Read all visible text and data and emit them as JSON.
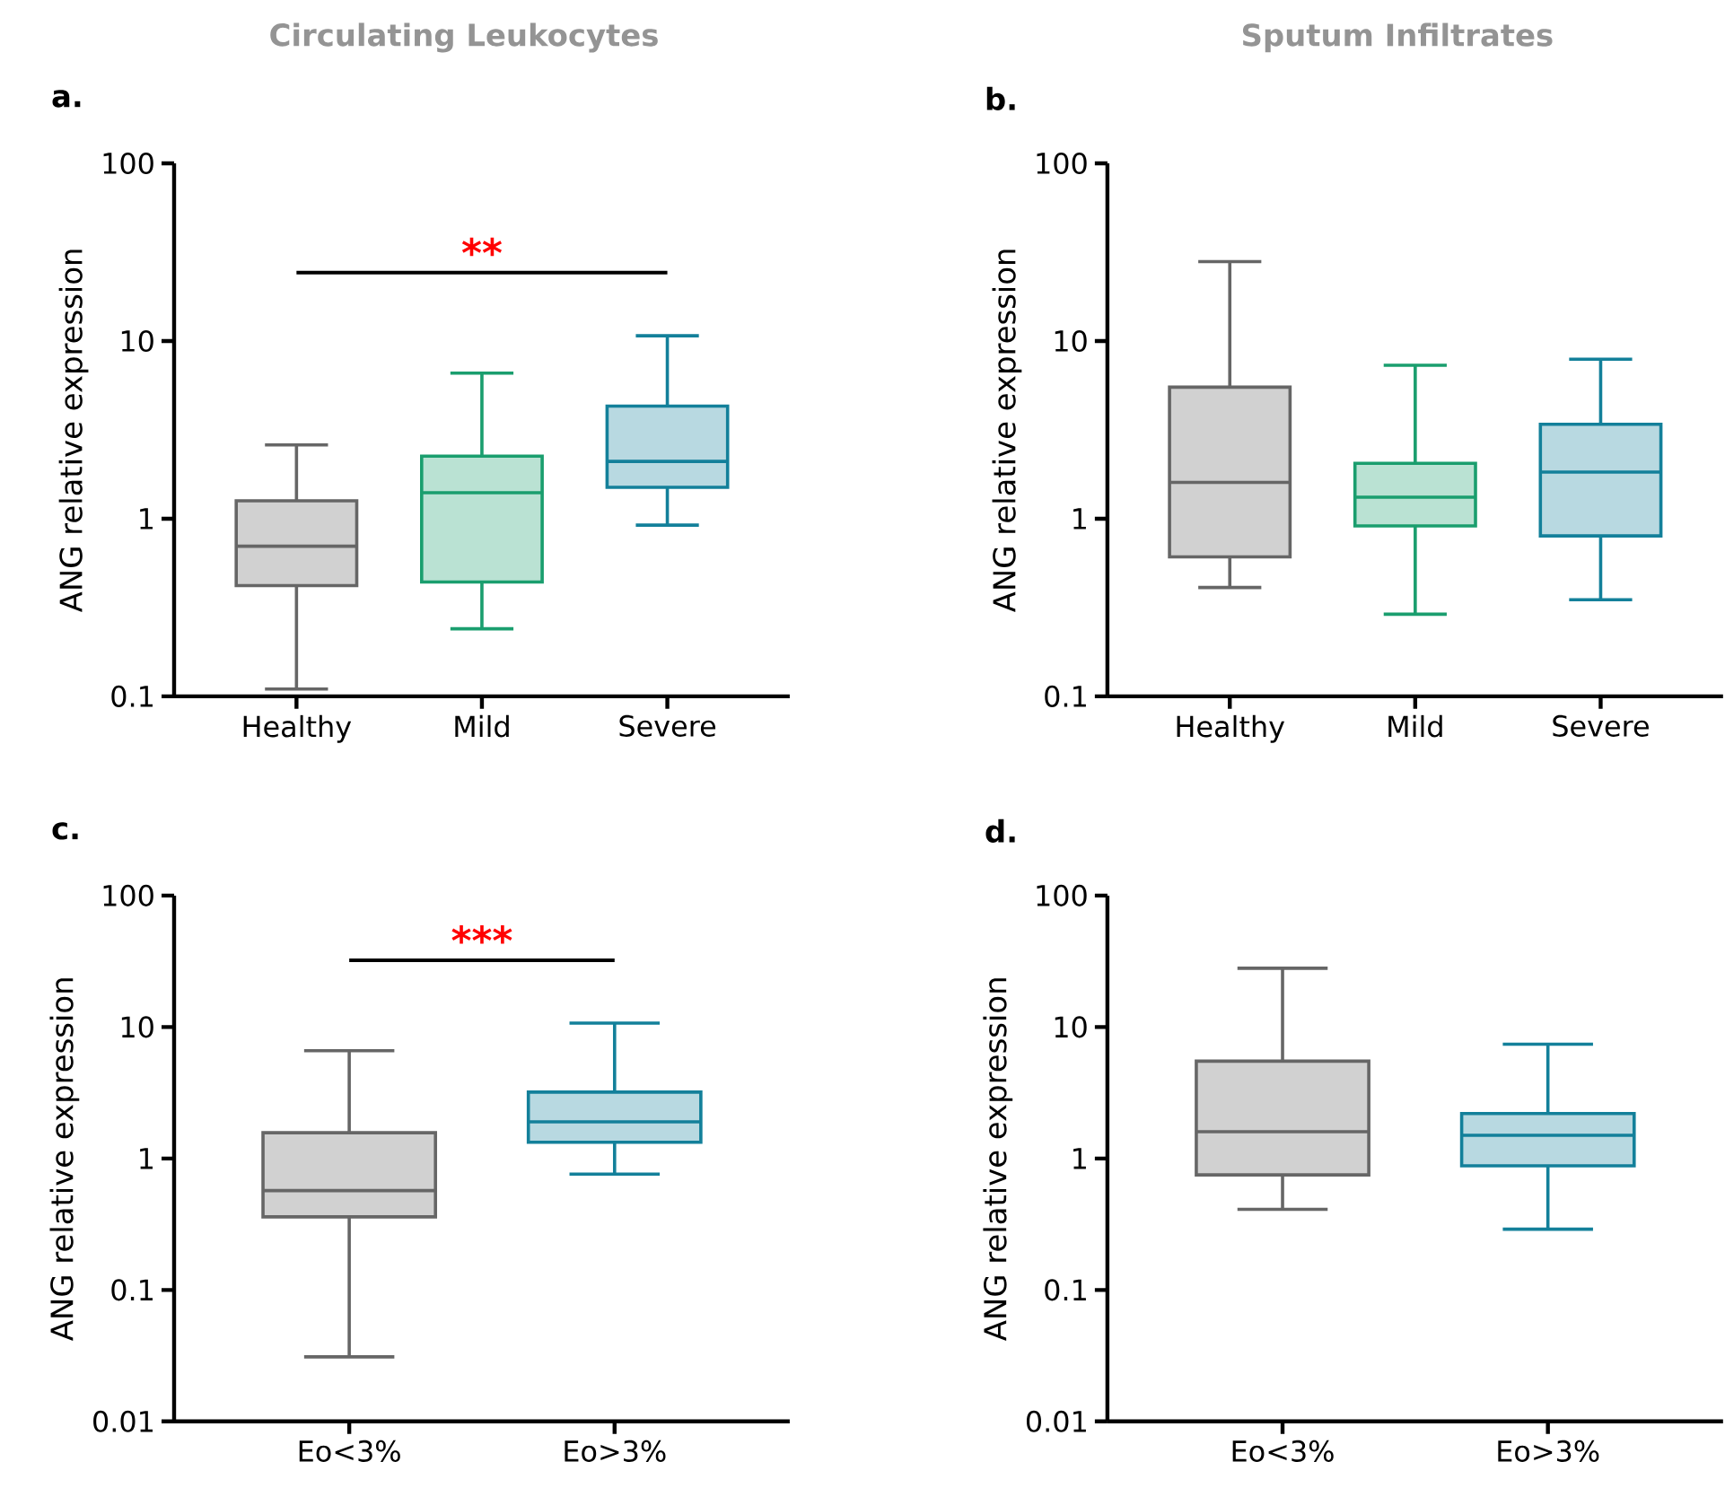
{
  "chart_data": [
    {
      "type": "box",
      "title": "Circulating Leukocytes",
      "ylabel": "ANG relative expression",
      "log": "y",
      "ylim": [
        0.1,
        100
      ],
      "yticks": [
        0.1,
        1,
        10,
        100
      ],
      "categories": [
        "Healthy",
        "Mild",
        "Severe"
      ],
      "colors": [
        "#666666",
        "#1a9e6e",
        "#13809a"
      ],
      "boxes": [
        {
          "low": 0.11,
          "q1": 0.42,
          "median": 0.7,
          "q3": 1.26,
          "high": 2.6
        },
        {
          "low": 0.24,
          "q1": 0.44,
          "median": 1.4,
          "q3": 2.25,
          "high": 6.6
        },
        {
          "low": 0.92,
          "q1": 1.5,
          "median": 2.1,
          "q3": 4.3,
          "high": 10.7
        }
      ],
      "annotations": [
        "a.",
        "**"
      ]
    },
    {
      "type": "box",
      "title": "Sputum Infiltrates",
      "ylabel": "ANG relative expression",
      "log": "y",
      "ylim": [
        0.1,
        100
      ],
      "yticks": [
        0.1,
        1,
        10,
        100
      ],
      "categories": [
        "Healthy",
        "Mild",
        "Severe"
      ],
      "colors": [
        "#666666",
        "#1a9e6e",
        "#13809a"
      ],
      "boxes": [
        {
          "low": 0.41,
          "q1": 0.61,
          "median": 1.6,
          "q3": 5.5,
          "high": 28
        },
        {
          "low": 0.29,
          "q1": 0.91,
          "median": 1.32,
          "q3": 2.05,
          "high": 7.3
        },
        {
          "low": 0.35,
          "q1": 0.8,
          "median": 1.83,
          "q3": 3.4,
          "high": 7.9
        }
      ],
      "annotations": [
        "b."
      ]
    },
    {
      "type": "box",
      "ylabel": "ANG relative expression",
      "log": "y",
      "ylim": [
        0.01,
        100
      ],
      "yticks": [
        0.01,
        0.1,
        1,
        10,
        100
      ],
      "categories": [
        "Eo<3%",
        "Eo>3%"
      ],
      "colors": [
        "#666666",
        "#13809a"
      ],
      "boxes": [
        {
          "low": 0.031,
          "q1": 0.36,
          "median": 0.57,
          "q3": 1.57,
          "high": 6.6
        },
        {
          "low": 0.76,
          "q1": 1.33,
          "median": 1.9,
          "q3": 3.2,
          "high": 10.7
        }
      ],
      "annotations": [
        "c.",
        "***"
      ]
    },
    {
      "type": "box",
      "ylabel": "ANG relative expression",
      "log": "y",
      "ylim": [
        0.01,
        100
      ],
      "yticks": [
        0.01,
        0.1,
        1,
        10,
        100
      ],
      "categories": [
        "Eo<3%",
        "Eo>3%"
      ],
      "colors": [
        "#666666",
        "#13809a"
      ],
      "boxes": [
        {
          "low": 0.41,
          "q1": 0.75,
          "median": 1.6,
          "q3": 5.5,
          "high": 28
        },
        {
          "low": 0.29,
          "q1": 0.88,
          "median": 1.5,
          "q3": 2.2,
          "high": 7.4
        }
      ],
      "annotations": [
        "d."
      ]
    }
  ]
}
